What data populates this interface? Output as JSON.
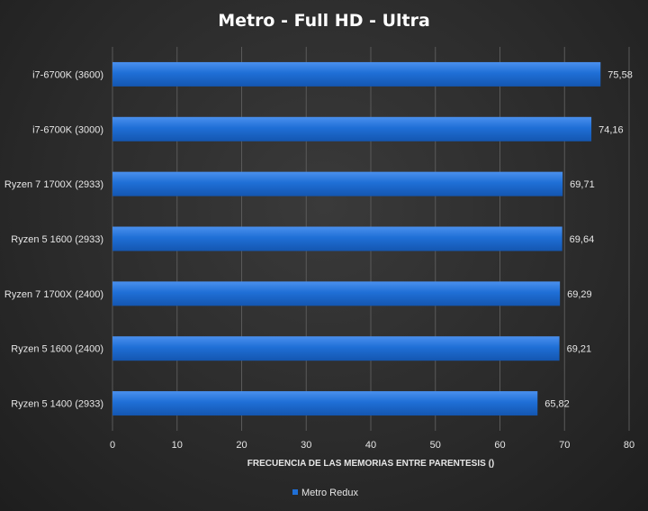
{
  "chart_data": {
    "type": "bar",
    "orientation": "horizontal",
    "title": "Metro  -  Full  HD  -  Ultra",
    "xlabel": "FRECUENCIA DE LAS MEMORIAS  ENTRE PARENTESIS ()",
    "ylabel": "",
    "categories": [
      "i7-6700K (3600)",
      "i7-6700K (3000)",
      "Ryzen 7 1700X (2933)",
      "Ryzen 5 1600 (2933)",
      "Ryzen 7 1700X (2400)",
      "Ryzen 5 1600 (2400)",
      "Ryzen 5 1400 (2933)"
    ],
    "series": [
      {
        "name": "Metro Redux",
        "values": [
          75.58,
          74.16,
          69.71,
          69.64,
          69.29,
          69.21,
          65.82
        ],
        "value_labels": [
          "75,58",
          "74,16",
          "69,71",
          "69,64",
          "69,29",
          "69,21",
          "65,82"
        ],
        "color": "#1f6fd6"
      }
    ],
    "xlim": [
      0,
      80
    ],
    "xticks": [
      0,
      10,
      20,
      30,
      40,
      50,
      60,
      70,
      80
    ],
    "grid": true,
    "legend": "bottom"
  }
}
